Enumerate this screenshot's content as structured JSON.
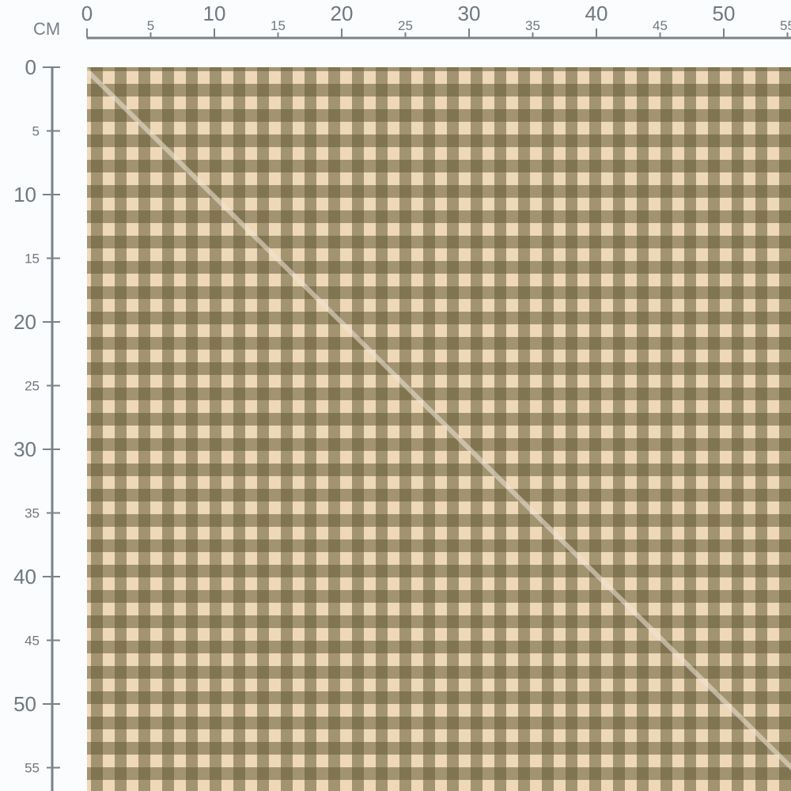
{
  "ruler": {
    "unit": "CM",
    "top_labels": [
      0,
      5,
      10,
      15,
      20,
      25,
      30,
      35,
      40,
      45,
      50,
      55
    ],
    "left_labels": [
      0,
      5,
      10,
      15,
      20,
      25,
      30,
      35,
      40,
      45,
      50,
      55
    ]
  },
  "swatch": {
    "pattern": "gingham",
    "colors": {
      "dark": "#645c37",
      "cream": "#efd8b7"
    }
  }
}
